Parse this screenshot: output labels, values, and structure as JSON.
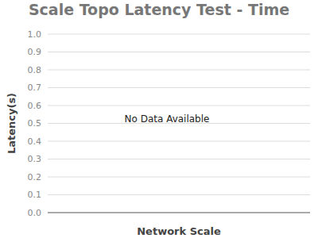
{
  "chart_data": {
    "type": "line",
    "title": "Scale Topo Latency Test - Time",
    "xlabel": "Network Scale",
    "ylabel": "Latency(s)",
    "annotation": "No Data Available",
    "categories": [],
    "values": [],
    "ylim": [
      0,
      1
    ],
    "yticks": [
      {
        "value": 0,
        "label": "0.0"
      },
      0.1,
      0.2,
      0.3,
      0.4,
      0.5,
      0.6,
      0.7,
      0.8,
      0.9,
      {
        "value": 1,
        "label": "1.0"
      }
    ],
    "grid": true,
    "color": "#4472c4"
  }
}
